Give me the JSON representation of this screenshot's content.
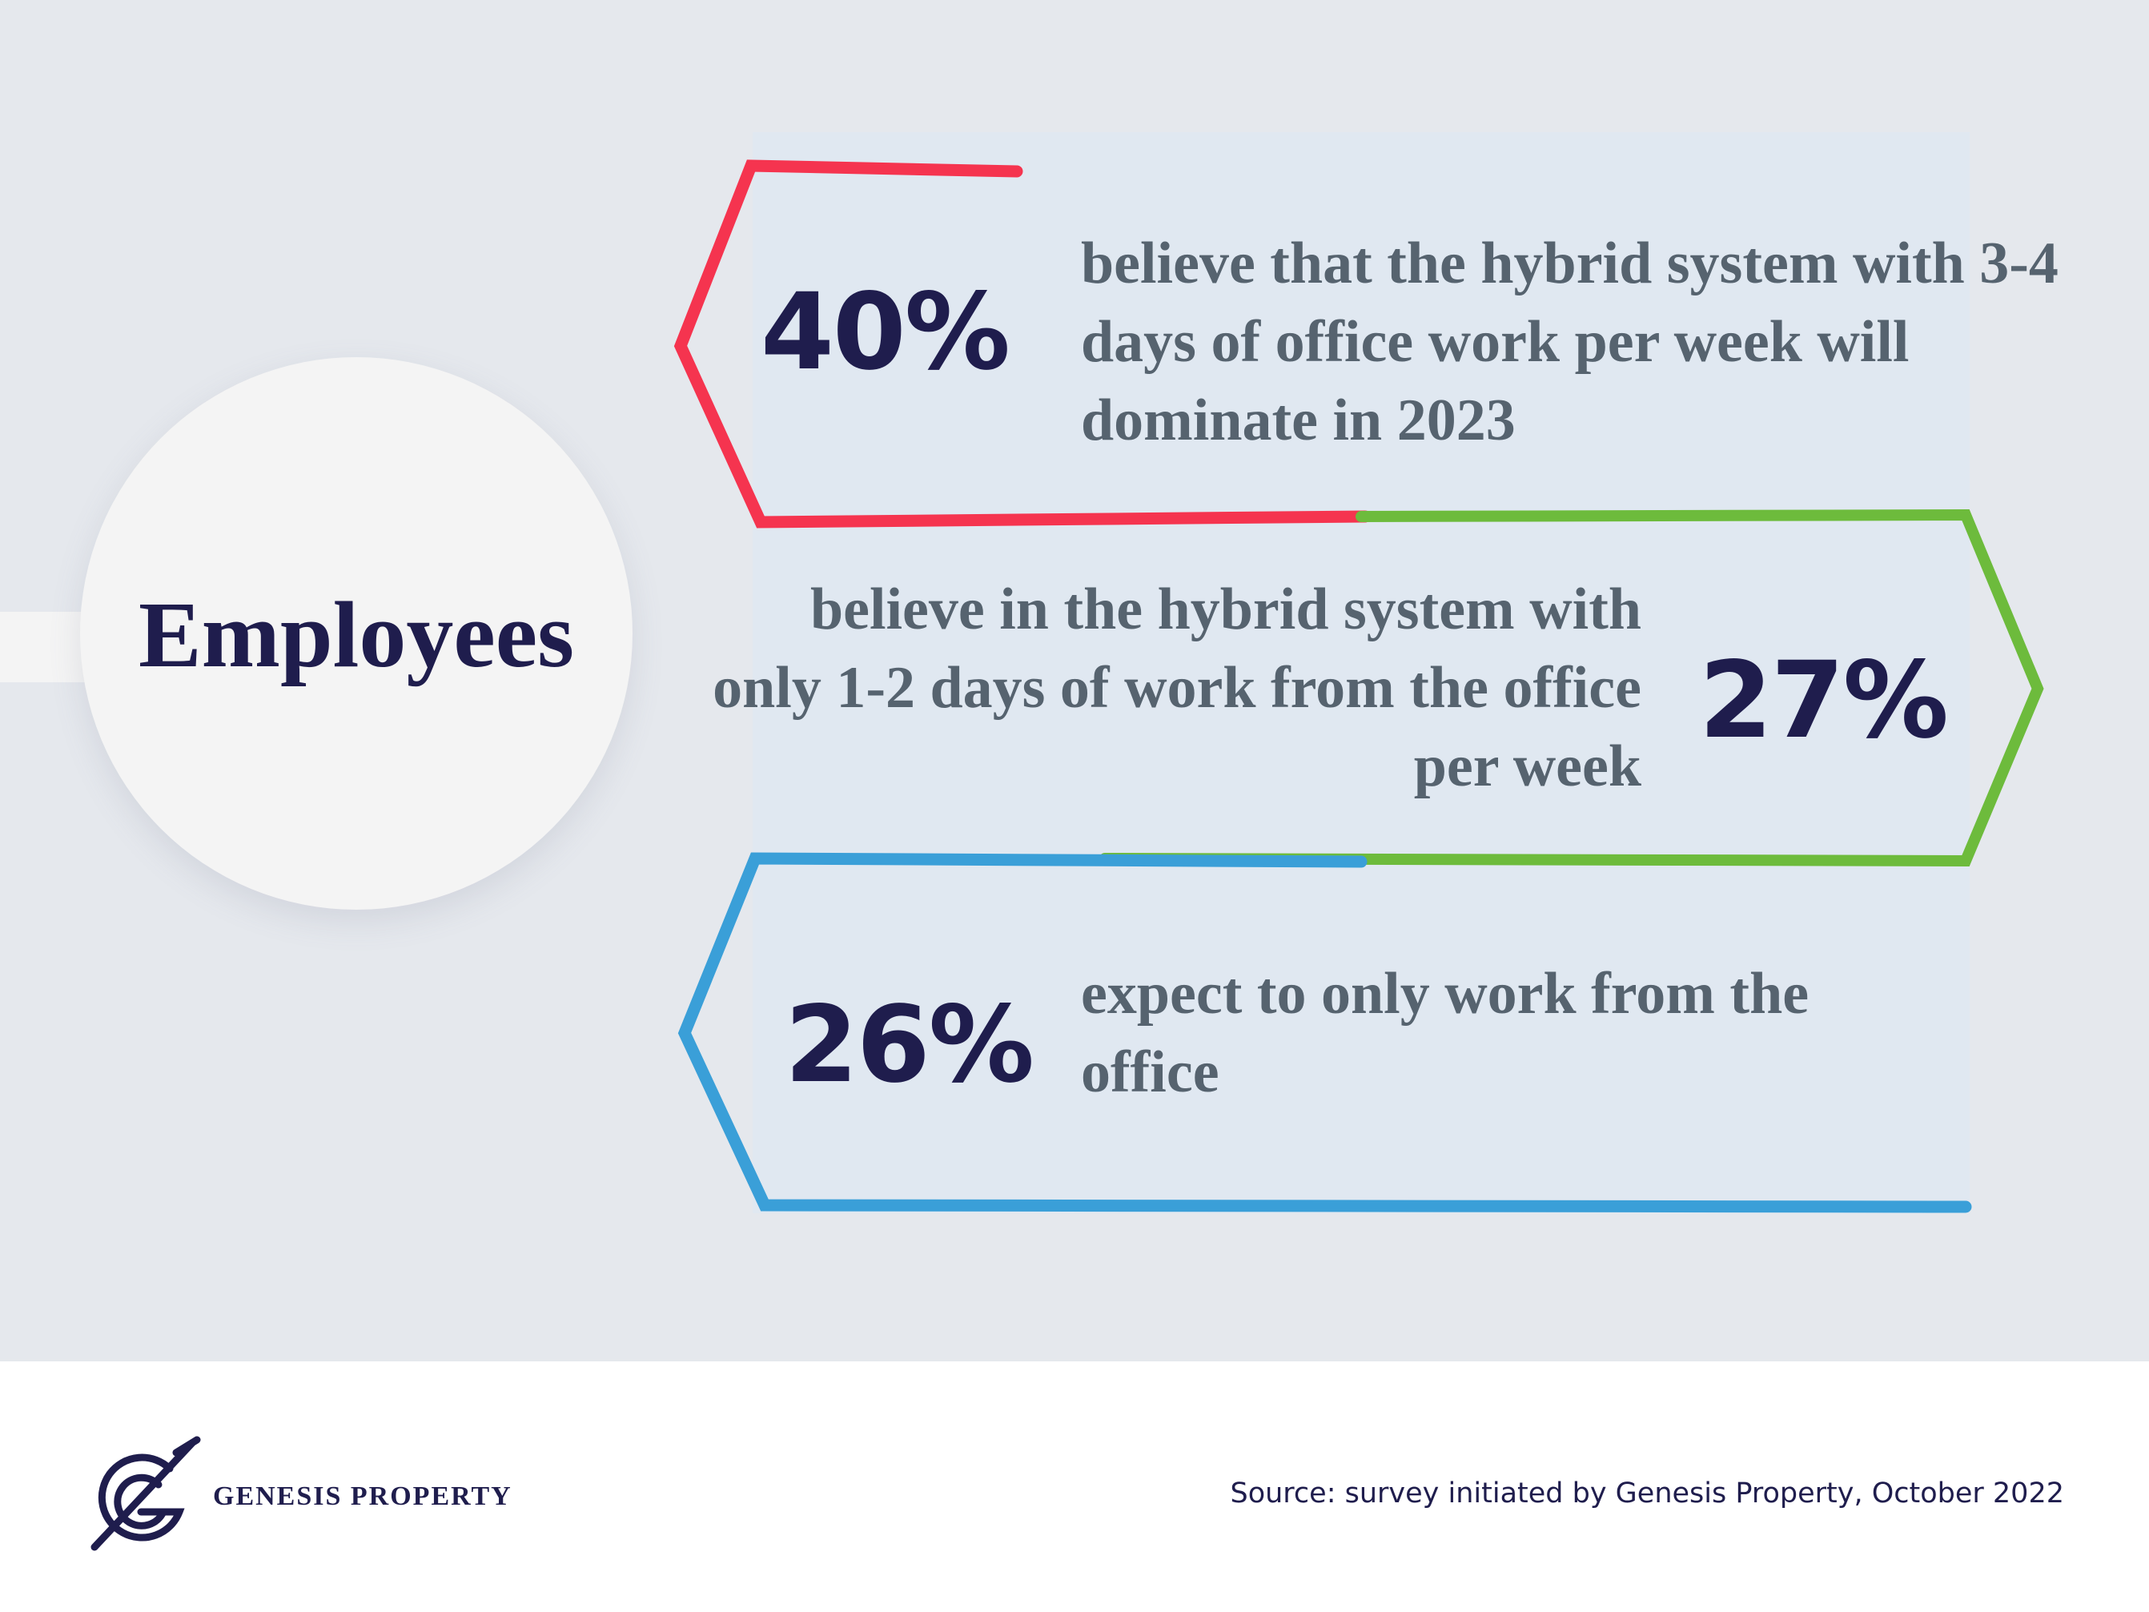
{
  "hub": {
    "label": "Employees"
  },
  "stats": [
    {
      "percent": "40%",
      "text": "believe that the hybrid system with 3-4 days of office work per week will dominate in 2023",
      "color": "#f5344f"
    },
    {
      "percent": "27%",
      "text": "believe in the hybrid system with only 1-2 days of work from the office per week",
      "color": "#6dbb3c"
    },
    {
      "percent": "26%",
      "text": "expect to only work from the office",
      "color": "#3a9fd8"
    }
  ],
  "footer": {
    "brand": "GENESIS PROPERTY",
    "logo_icon": "genesis-g-monogram-icon",
    "source": "Source: survey initiated by Genesis Property, October 2022"
  },
  "colors": {
    "navy": "#1f1d4d",
    "body_text": "#56636f",
    "background": "#e5e8ed",
    "panel": "#e0e8f1"
  }
}
